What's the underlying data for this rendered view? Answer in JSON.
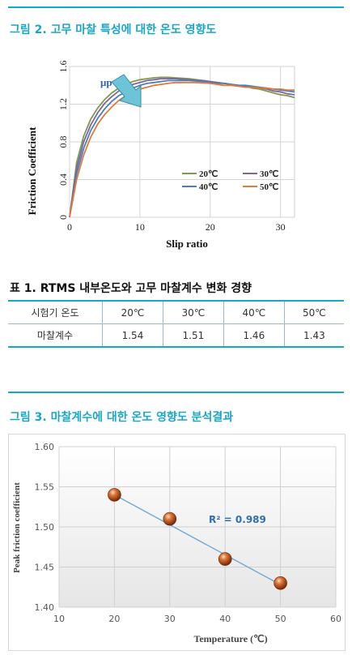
{
  "figure2": {
    "title": "그림 2. 고무 마찰 특성에 대한 온도 영향도",
    "mu_label": "μp",
    "colors": {
      "20℃": "#7f9a48",
      "30℃": "#7e64a0",
      "40℃": "#4a7ebb",
      "50℃": "#e07b39"
    },
    "chart_data": {
      "type": "line",
      "xlabel": "Slip ratio",
      "ylabel": "Friction Coefficient",
      "xlim": [
        0,
        32
      ],
      "ylim": [
        0,
        1.6
      ],
      "xticks": [
        "0",
        "10",
        "20",
        "30"
      ],
      "yticks": [
        "0",
        "0.4",
        "0.8",
        "1.2",
        "1.6"
      ],
      "grid": true,
      "legend": "center-right",
      "x": [
        0,
        1,
        2,
        3,
        4,
        5,
        6,
        7,
        8,
        9,
        10,
        11,
        12,
        13,
        14,
        15,
        16,
        17,
        18,
        19,
        20,
        21,
        22,
        23,
        24,
        25,
        26,
        27,
        28,
        29,
        30,
        31,
        32
      ],
      "series": [
        {
          "name": "20℃",
          "values": [
            0,
            0.58,
            0.86,
            1.04,
            1.16,
            1.25,
            1.32,
            1.37,
            1.41,
            1.44,
            1.46,
            1.47,
            1.48,
            1.485,
            1.485,
            1.48,
            1.475,
            1.47,
            1.46,
            1.45,
            1.44,
            1.43,
            1.42,
            1.41,
            1.4,
            1.39,
            1.37,
            1.36,
            1.34,
            1.32,
            1.3,
            1.29,
            1.27
          ]
        },
        {
          "name": "30℃",
          "values": [
            0,
            0.52,
            0.8,
            0.98,
            1.11,
            1.21,
            1.28,
            1.34,
            1.38,
            1.41,
            1.43,
            1.45,
            1.46,
            1.47,
            1.47,
            1.47,
            1.465,
            1.46,
            1.455,
            1.45,
            1.44,
            1.43,
            1.42,
            1.41,
            1.4,
            1.39,
            1.38,
            1.37,
            1.36,
            1.34,
            1.33,
            1.31,
            1.3
          ]
        },
        {
          "name": "40℃",
          "values": [
            0,
            0.46,
            0.73,
            0.92,
            1.05,
            1.15,
            1.23,
            1.29,
            1.33,
            1.37,
            1.4,
            1.42,
            1.43,
            1.44,
            1.45,
            1.45,
            1.45,
            1.45,
            1.445,
            1.44,
            1.43,
            1.42,
            1.42,
            1.41,
            1.4,
            1.4,
            1.39,
            1.38,
            1.37,
            1.36,
            1.35,
            1.34,
            1.33
          ]
        },
        {
          "name": "50℃",
          "values": [
            0,
            0.4,
            0.66,
            0.85,
            0.99,
            1.09,
            1.17,
            1.24,
            1.29,
            1.33,
            1.36,
            1.38,
            1.4,
            1.41,
            1.42,
            1.43,
            1.43,
            1.43,
            1.43,
            1.425,
            1.42,
            1.41,
            1.4,
            1.4,
            1.39,
            1.38,
            1.38,
            1.37,
            1.37,
            1.36,
            1.36,
            1.35,
            1.35
          ]
        }
      ]
    }
  },
  "table1": {
    "title": "표 1. RTMS 내부온도와 고무 마찰계수 변화 경향",
    "header": [
      "시험기 온도",
      "20℃",
      "30℃",
      "40℃",
      "50℃"
    ],
    "row": [
      "마찰계수",
      "1.54",
      "1.51",
      "1.46",
      "1.43"
    ]
  },
  "figure3": {
    "title": "그림 3. 마찰계수에 대한 온도 영향도 분석결과",
    "r2_label": "R² = 0.989",
    "chart_data": {
      "type": "scatter",
      "xlabel": "Temperature (℃)",
      "ylabel": "Peak friction coefficient",
      "xlim": [
        10,
        60
      ],
      "ylim": [
        1.4,
        1.6
      ],
      "xticks": [
        "10",
        "20",
        "30",
        "40",
        "50",
        "60"
      ],
      "yticks": [
        "1.40",
        "1.45",
        "1.50",
        "1.55",
        "1.60"
      ],
      "grid": true,
      "x": [
        20,
        30,
        40,
        50
      ],
      "y": [
        1.54,
        1.51,
        1.46,
        1.43
      ],
      "trendline": {
        "x": [
          20,
          50
        ],
        "y": [
          1.54,
          1.428
        ]
      }
    }
  }
}
